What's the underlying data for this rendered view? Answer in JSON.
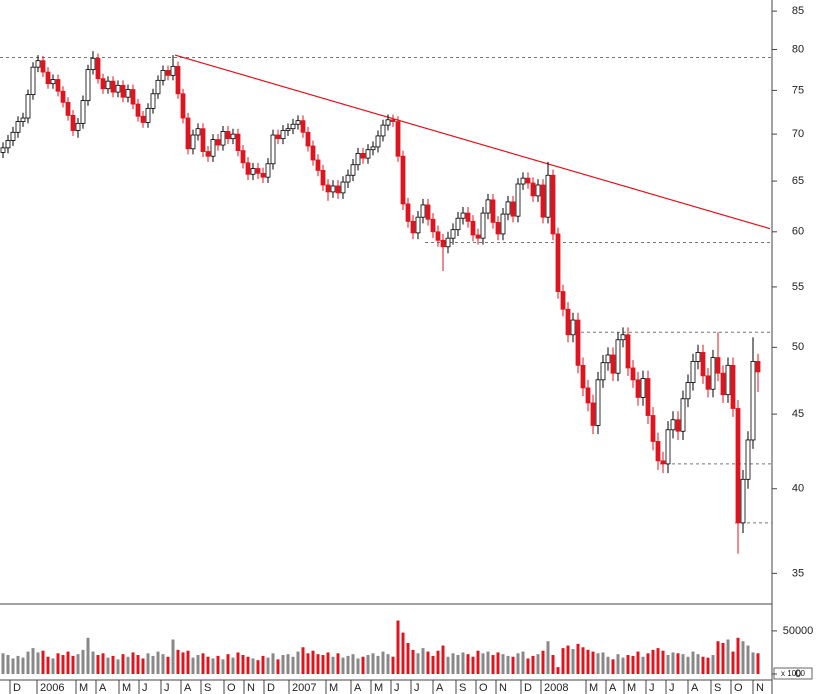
{
  "chart_data": {
    "type": "candlestick",
    "log_scale": true,
    "xlim": [
      -0.6,
      153.8
    ],
    "ylim": [
      33.4,
      86.5
    ],
    "yticks": [
      35,
      40,
      45,
      50,
      55,
      60,
      65,
      70,
      75,
      80,
      85
    ],
    "xticks": [
      {
        "value": 1.4,
        "label": "D"
      },
      {
        "value": 6.8,
        "label": "2006"
      },
      {
        "value": 14.6,
        "label": "M"
      },
      {
        "value": 18.6,
        "label": "A"
      },
      {
        "value": 23.2,
        "label": "M"
      },
      {
        "value": 27.2,
        "label": "J"
      },
      {
        "value": 31.6,
        "label": "J"
      },
      {
        "value": 35.6,
        "label": "A"
      },
      {
        "value": 39.6,
        "label": "S"
      },
      {
        "value": 44.2,
        "label": "O"
      },
      {
        "value": 48.2,
        "label": "N"
      },
      {
        "value": 52.2,
        "label": "D"
      },
      {
        "value": 57.2,
        "label": "2007"
      },
      {
        "value": 64.6,
        "label": "M"
      },
      {
        "value": 69.6,
        "label": "A"
      },
      {
        "value": 73.6,
        "label": "M"
      },
      {
        "value": 77.6,
        "label": "J"
      },
      {
        "value": 81.6,
        "label": "J"
      },
      {
        "value": 86,
        "label": "A"
      },
      {
        "value": 90.6,
        "label": "S"
      },
      {
        "value": 94.6,
        "label": "O"
      },
      {
        "value": 98.6,
        "label": "N"
      },
      {
        "value": 103.6,
        "label": "D"
      },
      {
        "value": 107.6,
        "label": "2008"
      },
      {
        "value": 116.6,
        "label": "M"
      },
      {
        "value": 120.6,
        "label": "A"
      },
      {
        "value": 124.2,
        "label": "M"
      },
      {
        "value": 128.6,
        "label": "J"
      },
      {
        "value": 132.6,
        "label": "J"
      },
      {
        "value": 137,
        "label": "A"
      },
      {
        "value": 141.6,
        "label": "S"
      },
      {
        "value": 145.6,
        "label": "O"
      },
      {
        "value": 150,
        "label": "N"
      }
    ],
    "up_color": "#ffffff",
    "down_color": "#e0141e",
    "open": [
      68.0,
      68.5,
      69.3,
      70.2,
      71.4,
      71.8,
      74.5,
      77.8,
      78.6,
      77.2,
      75.8,
      76.3,
      74.9,
      73.6,
      72.1,
      70.4,
      71.2,
      73.8,
      77.5,
      78.9,
      76.4,
      75.2,
      76.1,
      74.8,
      75.6,
      74.2,
      75.1,
      73.4,
      72.0,
      71.3,
      72.9,
      74.6,
      76.2,
      77.4,
      76.8,
      77.9,
      74.6,
      71.8,
      68.4,
      69.9,
      70.6,
      68.1,
      67.6,
      69.4,
      68.8,
      70.3,
      69.5,
      70.0,
      68.2,
      66.9,
      65.7,
      66.3,
      65.8,
      65.4,
      66.8,
      69.9,
      69.5,
      70.4,
      70.6,
      71.1,
      71.5,
      70.2,
      68.7,
      67.2,
      66.1,
      64.6,
      63.9,
      64.5,
      63.8,
      64.9,
      65.6,
      66.7,
      67.9,
      67.4,
      68.3,
      68.6,
      69.8,
      71.0,
      71.6,
      71.4,
      67.6,
      62.7,
      61.0,
      59.9,
      61.4,
      62.6,
      61.2,
      60.0,
      59.2,
      58.6,
      59.4,
      60.2,
      61.3,
      61.8,
      61.0,
      59.7,
      59.4,
      61.8,
      63.1,
      60.9,
      59.8,
      61.7,
      62.9,
      61.5,
      64.7,
      65.3,
      64.8,
      63.5,
      64.6,
      61.4,
      65.6,
      59.8,
      54.6,
      53.1,
      51.0,
      52.2,
      48.6,
      46.9,
      45.8,
      44.2,
      47.5,
      48.8,
      49.4,
      48.0,
      50.6,
      51.0,
      48.4,
      47.5,
      46.2,
      47.6,
      44.9,
      43.1,
      41.8,
      41.6,
      43.9,
      44.6,
      43.8,
      46.1,
      47.3,
      48.9,
      49.6,
      47.8,
      46.8,
      49.2,
      48.0,
      46.4,
      48.6,
      45.4,
      37.9,
      40.6,
      43.2,
      48.9
    ],
    "high": [
      69.1,
      69.9,
      70.8,
      72.0,
      72.4,
      75.1,
      78.4,
      79.3,
      79.2,
      77.8,
      76.9,
      76.9,
      75.5,
      74.2,
      72.7,
      71.8,
      74.4,
      78.1,
      79.8,
      79.5,
      77.0,
      76.7,
      76.7,
      76.2,
      76.2,
      75.7,
      75.7,
      74.0,
      72.6,
      73.5,
      75.2,
      76.8,
      78.0,
      78.0,
      79.3,
      78.5,
      75.2,
      72.4,
      70.5,
      71.2,
      71.2,
      68.7,
      70.0,
      70.0,
      70.9,
      70.9,
      70.6,
      70.6,
      68.8,
      67.5,
      66.9,
      66.9,
      66.4,
      67.4,
      70.5,
      70.5,
      71.0,
      71.2,
      71.7,
      72.1,
      72.1,
      70.8,
      69.3,
      67.8,
      66.7,
      65.2,
      65.1,
      65.1,
      65.5,
      66.2,
      67.3,
      68.5,
      68.5,
      68.9,
      69.2,
      70.4,
      71.6,
      72.2,
      72.2,
      72.0,
      68.2,
      63.3,
      61.6,
      62.0,
      63.2,
      63.2,
      61.8,
      60.6,
      59.8,
      60.0,
      60.8,
      61.9,
      62.4,
      62.4,
      61.6,
      60.3,
      62.4,
      63.7,
      63.7,
      61.5,
      62.3,
      63.5,
      63.5,
      65.3,
      65.9,
      65.9,
      65.4,
      65.2,
      65.2,
      67.0,
      66.2,
      60.4,
      55.2,
      53.7,
      52.8,
      52.8,
      49.2,
      47.5,
      46.4,
      48.1,
      49.4,
      50.0,
      50.0,
      51.2,
      51.6,
      51.6,
      49.0,
      48.1,
      48.2,
      48.2,
      45.5,
      43.7,
      42.4,
      44.5,
      45.2,
      45.2,
      46.7,
      47.9,
      49.5,
      50.2,
      50.2,
      48.4,
      49.8,
      51.2,
      48.6,
      49.2,
      49.2,
      46.0,
      41.2,
      43.8,
      50.8,
      49.5
    ],
    "low": [
      67.4,
      67.9,
      68.7,
      69.6,
      70.8,
      71.2,
      73.9,
      77.2,
      76.6,
      75.2,
      75.2,
      74.3,
      73.0,
      71.5,
      69.8,
      69.6,
      70.6,
      73.2,
      76.9,
      75.8,
      74.6,
      74.6,
      74.2,
      74.2,
      73.6,
      73.6,
      72.8,
      71.4,
      70.7,
      70.7,
      72.3,
      74.0,
      75.6,
      76.2,
      76.2,
      74.0,
      71.2,
      67.8,
      67.8,
      69.3,
      67.5,
      67.0,
      67.0,
      68.2,
      68.2,
      68.9,
      68.9,
      67.6,
      66.3,
      65.1,
      65.1,
      65.2,
      64.8,
      64.8,
      66.2,
      68.9,
      68.9,
      69.8,
      70.0,
      70.5,
      69.6,
      68.1,
      66.6,
      65.5,
      64.0,
      63.0,
      63.3,
      63.2,
      63.2,
      64.3,
      65.0,
      66.1,
      66.8,
      66.8,
      67.7,
      68.0,
      69.2,
      70.4,
      70.8,
      67.0,
      62.1,
      60.4,
      59.3,
      59.3,
      60.8,
      60.6,
      59.4,
      58.6,
      56.4,
      58.0,
      58.8,
      59.6,
      60.7,
      60.4,
      59.1,
      58.8,
      58.8,
      61.2,
      60.3,
      59.2,
      59.2,
      61.1,
      60.9,
      60.9,
      64.1,
      64.2,
      62.9,
      62.9,
      60.8,
      60.8,
      59.2,
      54.0,
      52.5,
      50.4,
      50.4,
      48.0,
      46.3,
      45.2,
      43.6,
      43.6,
      46.9,
      48.2,
      47.4,
      47.4,
      50.0,
      47.8,
      46.9,
      45.6,
      45.6,
      44.3,
      42.5,
      41.2,
      41.0,
      41.0,
      43.3,
      43.2,
      43.2,
      45.5,
      46.7,
      48.3,
      47.2,
      46.2,
      46.2,
      47.4,
      45.8,
      45.8,
      44.8,
      36.1,
      37.3,
      40.0,
      42.6,
      46.6
    ],
    "close": [
      68.5,
      69.3,
      70.2,
      71.4,
      71.8,
      74.5,
      77.8,
      78.6,
      77.2,
      75.8,
      76.3,
      74.9,
      73.6,
      72.1,
      70.4,
      71.2,
      73.8,
      77.5,
      78.9,
      76.4,
      75.2,
      76.1,
      74.8,
      75.6,
      74.2,
      75.1,
      73.4,
      72.0,
      71.3,
      72.9,
      74.6,
      76.2,
      77.4,
      76.8,
      77.9,
      74.6,
      71.8,
      68.4,
      69.9,
      70.6,
      68.1,
      67.6,
      69.4,
      68.8,
      70.3,
      69.5,
      70.0,
      68.2,
      66.9,
      65.7,
      66.3,
      65.8,
      65.4,
      66.8,
      69.9,
      69.5,
      70.4,
      70.6,
      71.1,
      71.5,
      70.2,
      68.7,
      67.2,
      66.1,
      64.6,
      63.9,
      64.5,
      63.8,
      64.9,
      65.6,
      66.7,
      67.9,
      67.4,
      68.3,
      68.6,
      69.8,
      71.0,
      71.6,
      71.4,
      67.6,
      62.7,
      61.0,
      59.9,
      61.4,
      62.6,
      61.2,
      60.0,
      59.2,
      58.6,
      59.4,
      60.2,
      61.3,
      61.8,
      61.0,
      59.7,
      59.4,
      61.8,
      63.1,
      60.9,
      59.8,
      61.7,
      62.9,
      61.5,
      64.7,
      65.3,
      64.8,
      63.5,
      64.6,
      61.4,
      65.6,
      59.8,
      54.6,
      53.1,
      51.0,
      52.2,
      48.6,
      46.9,
      45.8,
      44.2,
      47.5,
      48.8,
      49.4,
      48.0,
      50.6,
      51.0,
      48.4,
      47.5,
      46.2,
      47.6,
      44.9,
      43.1,
      41.8,
      41.6,
      43.9,
      44.6,
      43.8,
      46.1,
      47.3,
      48.9,
      49.6,
      47.8,
      46.8,
      49.2,
      48.0,
      46.4,
      48.6,
      45.4,
      37.9,
      40.6,
      43.2,
      48.9,
      48.1
    ],
    "trendline": {
      "color": "#e0141e",
      "x": [
        34.4,
        153.4
      ],
      "y": [
        79.3,
        60.3
      ]
    },
    "hlines": [
      {
        "value": 79,
        "from": -0.6
      },
      {
        "value": 59,
        "from": 84.4
      },
      {
        "value": 51.2,
        "from": 114.4
      },
      {
        "value": 41.6,
        "from": 131.4
      },
      {
        "value": 37.9,
        "from": 146.4
      }
    ],
    "volume": {
      "ylim": [
        0,
        80000
      ],
      "yticks": [
        0,
        50000
      ],
      "unit_label": "x 1000",
      "values": [
        24000,
        22000,
        18000,
        21000,
        19000,
        26000,
        30000,
        25000,
        27000,
        20000,
        18000,
        24000,
        22000,
        26000,
        21000,
        23000,
        28000,
        42000,
        26000,
        22000,
        24000,
        19000,
        21000,
        17000,
        23000,
        20000,
        25000,
        22000,
        18000,
        24000,
        21000,
        26000,
        23000,
        20000,
        40000,
        28000,
        25000,
        27000,
        19000,
        22000,
        24000,
        20000,
        18000,
        21000,
        17000,
        23000,
        19000,
        25000,
        22000,
        20000,
        18000,
        16000,
        21000,
        19000,
        24000,
        17000,
        22000,
        23000,
        20000,
        26000,
        31000,
        24000,
        27000,
        23000,
        22000,
        25000,
        20000,
        24000,
        19000,
        21000,
        23000,
        18000,
        20000,
        22000,
        24000,
        21000,
        26000,
        23000,
        20000,
        62000,
        48000,
        36000,
        28000,
        24000,
        30000,
        26000,
        21000,
        27000,
        33000,
        20000,
        24000,
        22000,
        25000,
        23000,
        20000,
        27000,
        24000,
        26000,
        22000,
        25000,
        23000,
        21000,
        20000,
        24000,
        26000,
        18000,
        21000,
        23000,
        27000,
        38000,
        22000,
        8000,
        30000,
        33000,
        29000,
        35000,
        31000,
        28000,
        26000,
        24000,
        25000,
        20000,
        17000,
        23000,
        19000,
        22000,
        21000,
        26000,
        20000,
        24000,
        28000,
        30000,
        27000,
        22000,
        25000,
        24000,
        23000,
        20000,
        26000,
        23000,
        20000,
        19000,
        22000,
        38000,
        36000,
        40000,
        26000,
        42000,
        38000,
        33000,
        25000,
        24000
      ]
    }
  }
}
